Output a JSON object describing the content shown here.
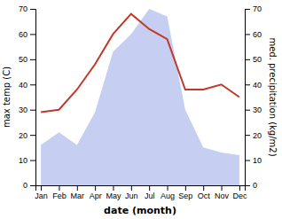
{
  "chart_data": {
    "type": "line",
    "categories": [
      "Jan",
      "Feb",
      "Mar",
      "Apr",
      "May",
      "Jun",
      "Jul",
      "Aug",
      "Sep",
      "Oct",
      "Nov",
      "Dec"
    ],
    "xlabel": "date (month)",
    "ylabel": "max temp (C)",
    "y2label": "med. precipitation (kg/m2)",
    "series": [
      {
        "type": "area",
        "axis": "y2",
        "color": "#bcc5ee",
        "values": [
          16,
          21,
          16,
          29,
          53,
          60,
          70,
          67,
          30,
          15,
          13,
          12
        ]
      },
      {
        "type": "line",
        "color": "#c0392b",
        "values": [
          29,
          30,
          38,
          48,
          60,
          68,
          62,
          58,
          38,
          38,
          40,
          35
        ]
      }
    ],
    "ylim": [
      0,
      70
    ],
    "yticks": [
      0,
      10,
      20,
      30,
      40,
      50,
      60,
      70
    ],
    "y2lim": [
      0,
      70
    ],
    "y2ticks": [
      0,
      10,
      20,
      30,
      40,
      50,
      60,
      70
    ],
    "grid": false
  }
}
